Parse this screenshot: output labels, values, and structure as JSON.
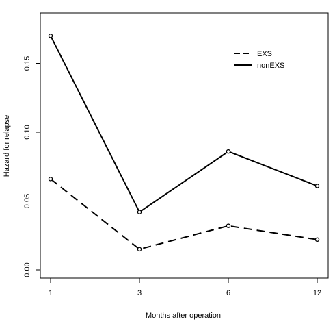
{
  "chart_data": {
    "type": "line",
    "title": "",
    "xlabel": "Months after operation",
    "ylabel": "Hazard for relapse",
    "categories": [
      "1",
      "3",
      "6",
      "12"
    ],
    "ylim": [
      0.0,
      0.17
    ],
    "yticks": [
      "0.00",
      "0.05",
      "0.10",
      "0.15"
    ],
    "grid": false,
    "legend_position": "top-right",
    "series": [
      {
        "name": "EXS",
        "line_style": "dashed",
        "color": "#000000",
        "values": [
          0.066,
          0.015,
          0.032,
          0.022
        ]
      },
      {
        "name": "nonEXS",
        "line_style": "solid",
        "color": "#000000",
        "values": [
          0.17,
          0.042,
          0.086,
          0.061
        ]
      }
    ]
  }
}
